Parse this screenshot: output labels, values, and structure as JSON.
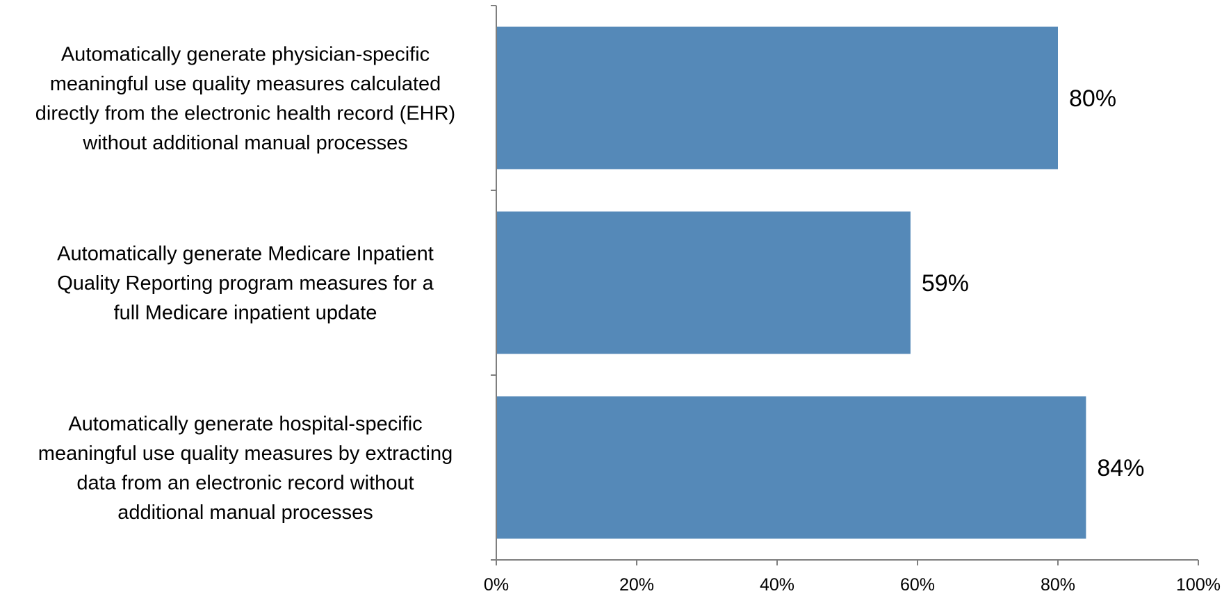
{
  "chart_data": {
    "type": "bar",
    "orientation": "horizontal",
    "categories": [
      "Automatically generate physician-specific meaningful use quality measures calculated directly from the electronic health record (EHR) without additional manual processes",
      "Automatically generate Medicare Inpatient Quality Reporting program measures for a full Medicare inpatient update",
      "Automatically generate hospital-specific meaningful use quality measures by extracting data from an electronic record without additional manual processes"
    ],
    "category_lines": [
      [
        "Automatically generate physician-specific",
        "meaningful use quality measures calculated",
        "directly from the electronic health record (EHR)",
        "without additional manual processes"
      ],
      [
        "Automatically generate Medicare Inpatient",
        "Quality Reporting program measures for a",
        "full Medicare inpatient update"
      ],
      [
        "Automatically generate hospital-specific",
        "meaningful use quality measures by extracting",
        "data from an electronic record without",
        "additional manual processes"
      ]
    ],
    "values": [
      80,
      59,
      84
    ],
    "data_labels": [
      "80%",
      "59%",
      "84%"
    ],
    "xlim": [
      0,
      100
    ],
    "xticks": [
      0,
      20,
      40,
      60,
      80,
      100
    ],
    "xtick_labels": [
      "0%",
      "20%",
      "40%",
      "60%",
      "80%",
      "100%"
    ],
    "title": "",
    "xlabel": "",
    "ylabel": "",
    "grid": false,
    "legend": "none",
    "colors": {
      "bar": "#5589b8",
      "axis": "#7f7f7f"
    }
  }
}
